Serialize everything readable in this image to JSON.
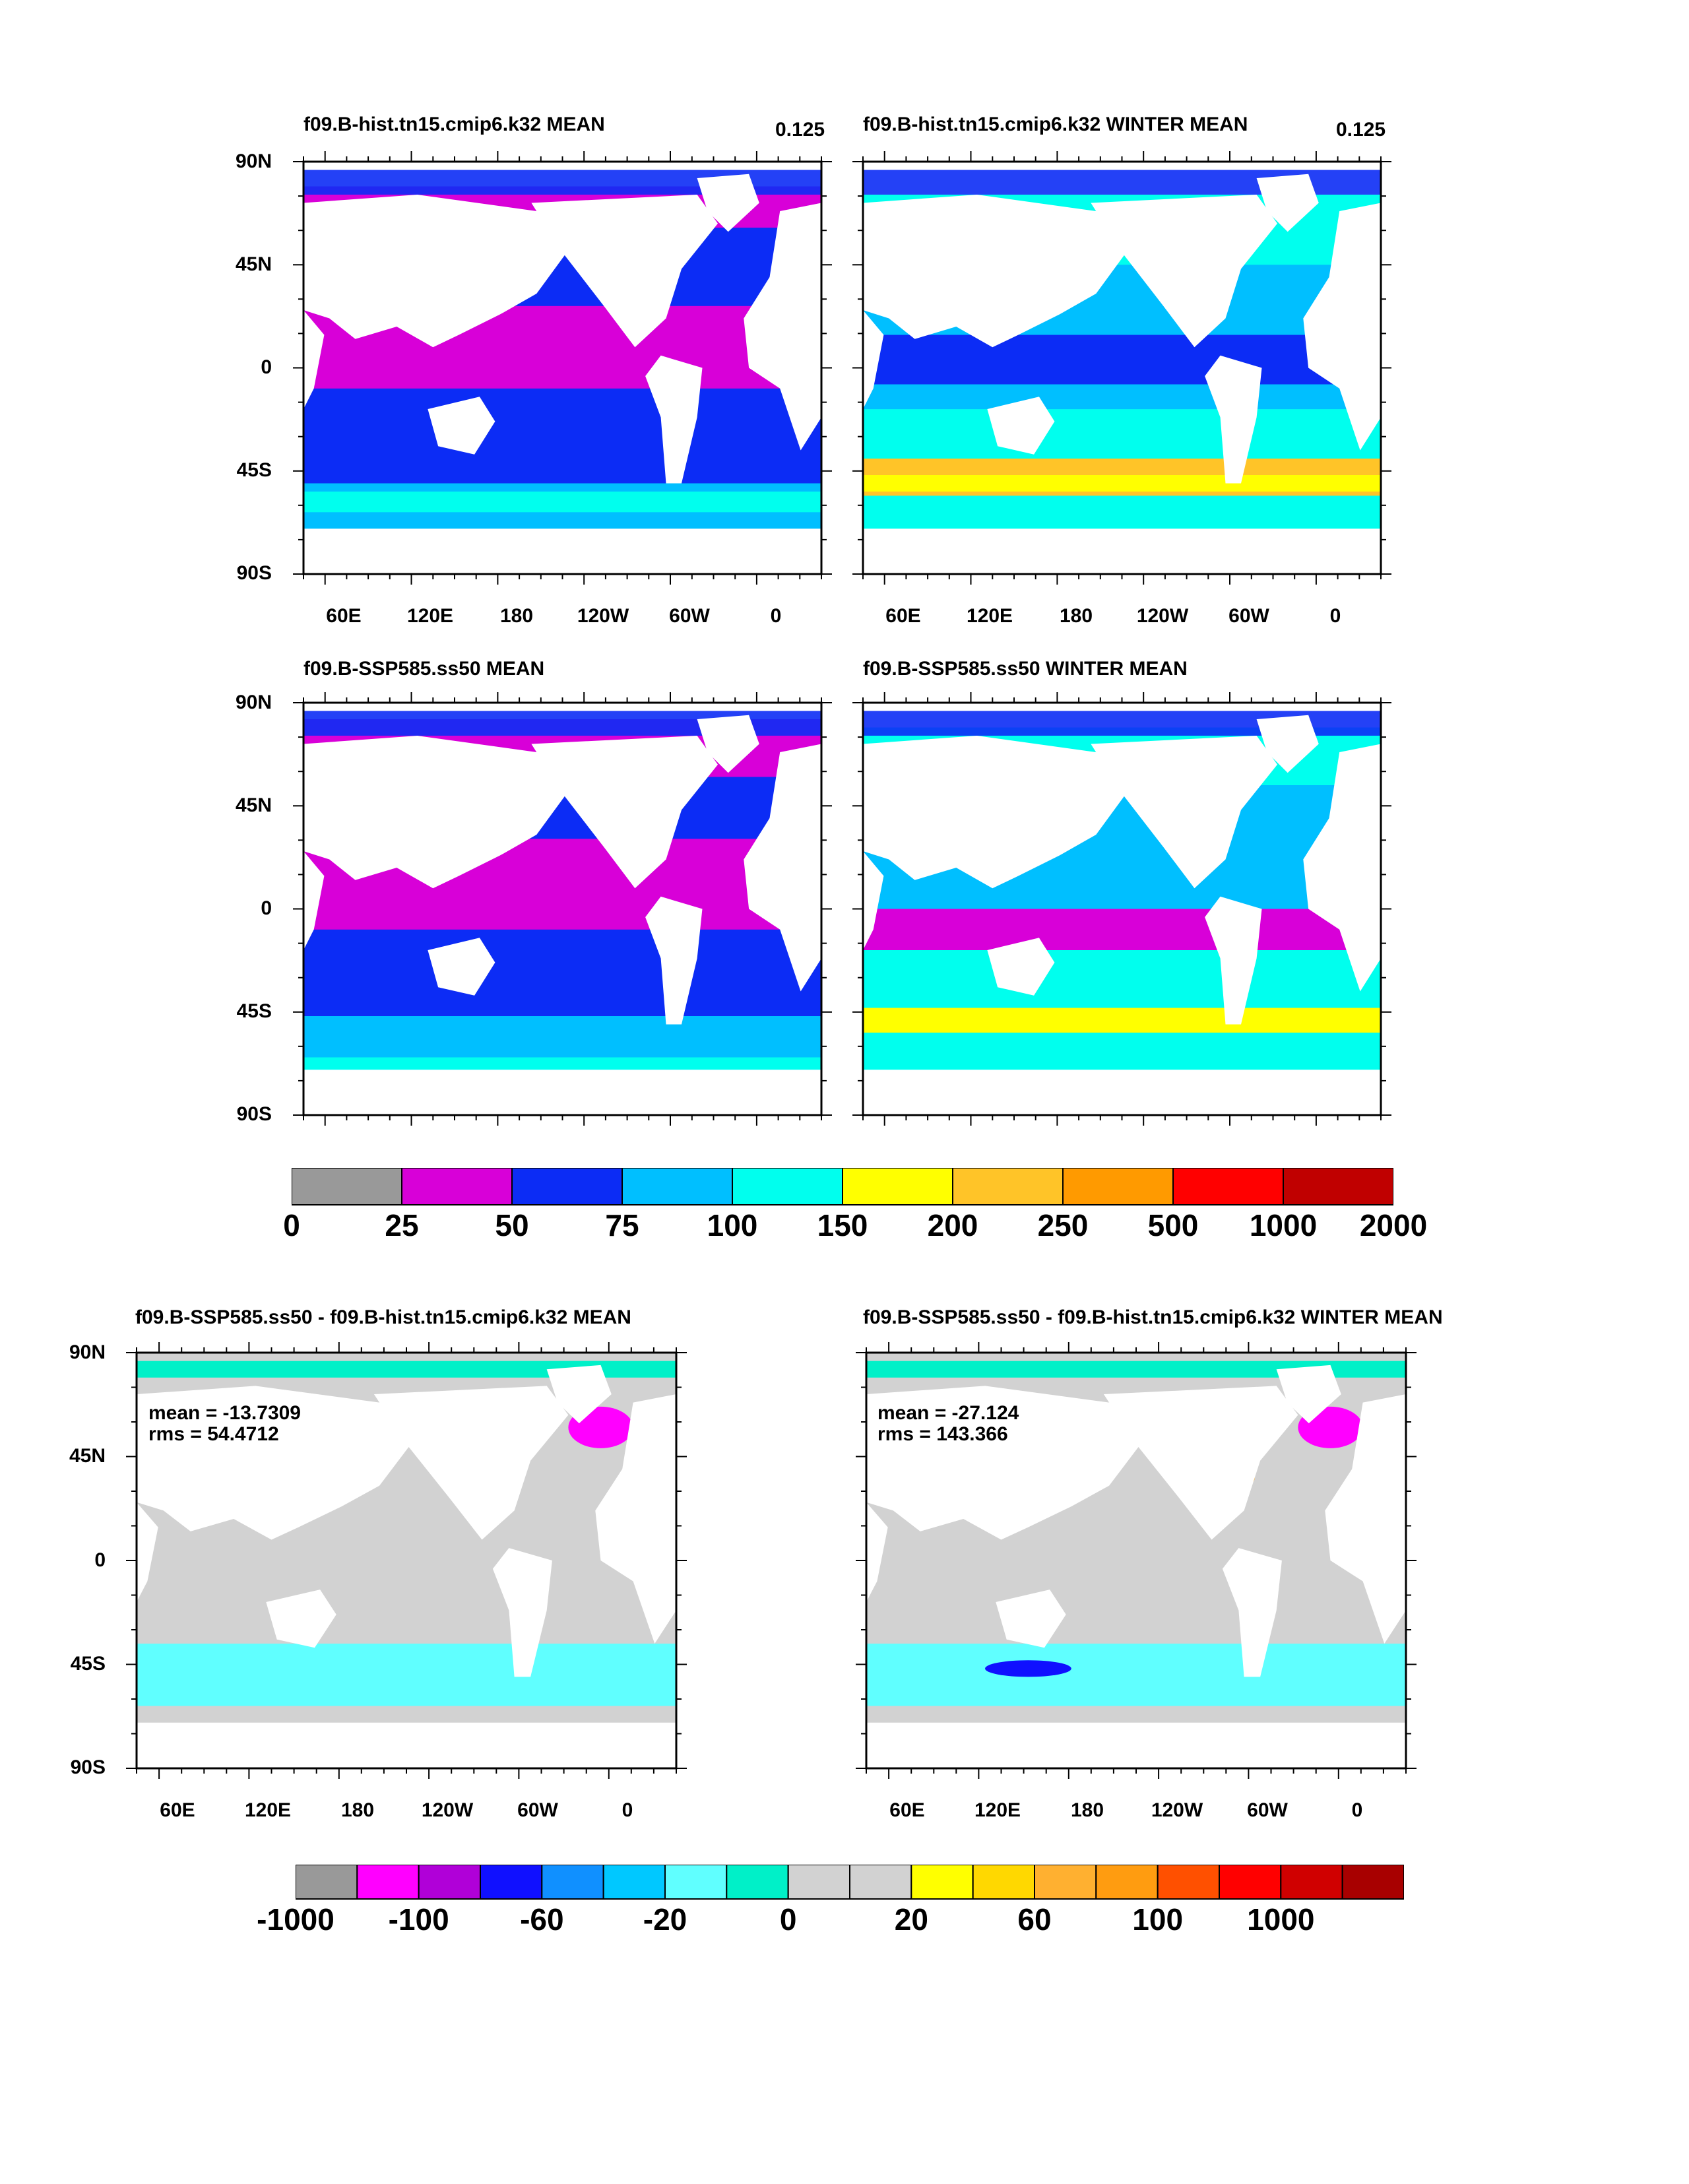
{
  "panels": [
    {
      "id": "p1",
      "title": "f09.B-hist.tn15.cmip6.k32 MEAN",
      "corner": "0.125",
      "stats": null
    },
    {
      "id": "p2",
      "title": "f09.B-hist.tn15.cmip6.k32 WINTER MEAN",
      "corner": "0.125",
      "stats": null
    },
    {
      "id": "p3",
      "title": "f09.B-SSP585.ss50 MEAN",
      "corner": "",
      "stats": null
    },
    {
      "id": "p4",
      "title": "f09.B-SSP585.ss50 WINTER MEAN",
      "corner": "",
      "stats": null
    },
    {
      "id": "p5",
      "title": "f09.B-SSP585.ss50 - f09.B-hist.tn15.cmip6.k32 MEAN",
      "corner": "",
      "stats": {
        "mean": "mean = -13.7309",
        "rms": "rms = 54.4712"
      }
    },
    {
      "id": "p6",
      "title": "f09.B-SSP585.ss50 - f09.B-hist.tn15.cmip6.k32 WINTER MEAN",
      "corner": "",
      "stats": {
        "mean": "mean = -27.124",
        "rms": "rms = 143.366"
      }
    }
  ],
  "axes": {
    "lat_labels": [
      "90N",
      "45N",
      "0",
      "45S",
      "90S"
    ],
    "lon_labels": [
      "60E",
      "120E",
      "180",
      "120W",
      "60W",
      "0"
    ]
  },
  "colorbar_abs": {
    "labels": [
      "0",
      "25",
      "50",
      "75",
      "100",
      "150",
      "200",
      "250",
      "500",
      "1000",
      "2000"
    ],
    "colors": [
      "#999999",
      "#d800d8",
      "#0c2cf5",
      "#00bfff",
      "#00ffee",
      "#ffff00",
      "#ffc428",
      "#ff9a00",
      "#ff0000",
      "#c00000"
    ]
  },
  "colorbar_diff": {
    "labels": [
      "-1000",
      "-100",
      "-60",
      "-20",
      "0",
      "20",
      "60",
      "100",
      "1000"
    ],
    "colors": [
      "#999999",
      "#ff00ff",
      "#b000d8",
      "#1010ff",
      "#1090ff",
      "#00c8ff",
      "#60ffff",
      "#00f0c8",
      "#d2d2d2",
      "#d2d2d2",
      "#ffff00",
      "#ffd800",
      "#ffb030",
      "#ff9c10",
      "#ff5000",
      "#ff0000",
      "#d00000",
      "#a80000"
    ]
  }
}
